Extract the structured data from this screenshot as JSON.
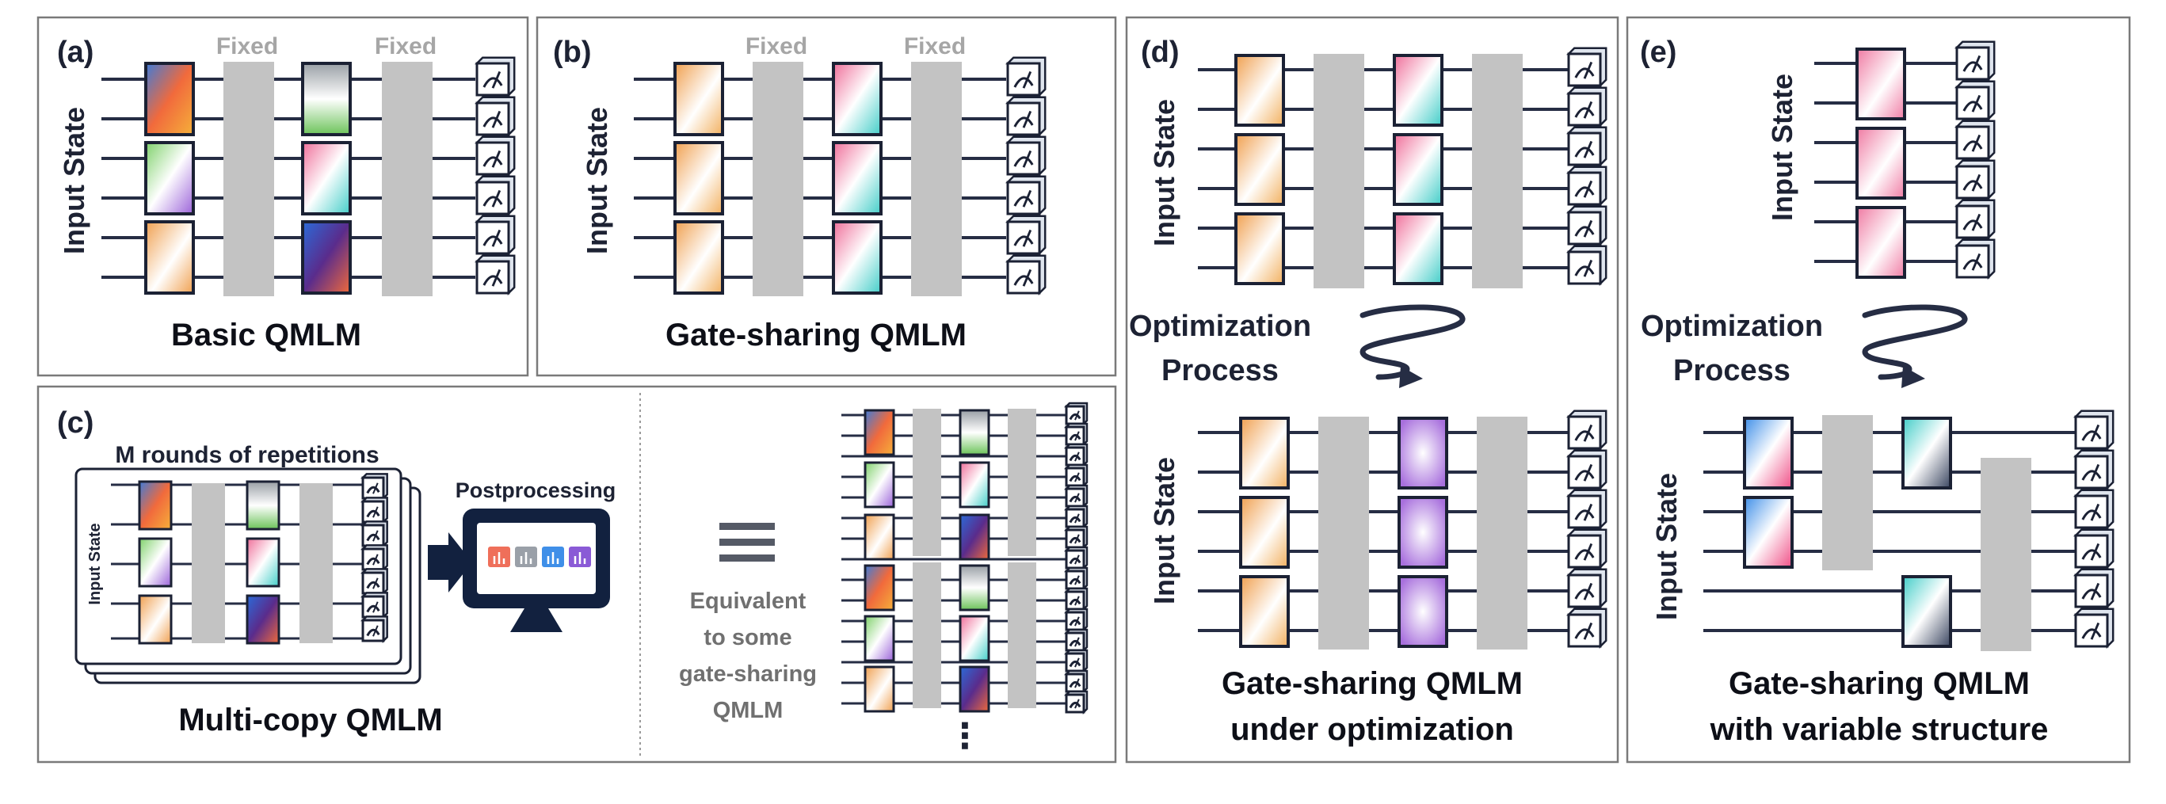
{
  "panels": {
    "a": {
      "tag": "(a)",
      "title": "Basic QMLM",
      "side": "Input State",
      "fixed1": "Fixed",
      "fixed2": "Fixed"
    },
    "b": {
      "tag": "(b)",
      "title": "Gate-sharing QMLM",
      "side": "Input State",
      "fixed1": "Fixed",
      "fixed2": "Fixed"
    },
    "c": {
      "tag": "(c)",
      "rounds": "M rounds of repetitions",
      "side": "Input State",
      "postprocessing": "Postprocessing",
      "title": "Multi-copy QMLM",
      "equiv1": "Equivalent",
      "equiv2": "to some",
      "equiv3": "gate-sharing",
      "equiv4": "QMLM",
      "ellipsis": "⋮"
    },
    "d": {
      "tag": "(d)",
      "side_top": "Input State",
      "side_bottom": "Input State",
      "opt1": "Optimization",
      "opt2": "Process",
      "title1": "Gate-sharing QMLM",
      "title2": "under optimization"
    },
    "e": {
      "tag": "(e)",
      "side_top": "Input State",
      "side_bottom": "Input State",
      "opt1": "Optimization",
      "opt2": "Process",
      "title1": "Gate-sharing QMLM",
      "title2": "with variable structure"
    }
  },
  "colors": {
    "wire": "#262d44",
    "fixed_block": "#c3c3c3",
    "gate_orange": "#f0a050",
    "gate_pink": "#ef6f9a",
    "gate_teal": "#43cdc8",
    "gate_purple": "#a870dd",
    "gate_blue": "#3f8fe8",
    "monitor": "#12213f"
  },
  "icons": [
    "measurement-meter-icon",
    "monitor-icon",
    "bar-chart-icon",
    "arrow-right-icon",
    "spiral-arrow-icon",
    "equivalence-icon"
  ]
}
